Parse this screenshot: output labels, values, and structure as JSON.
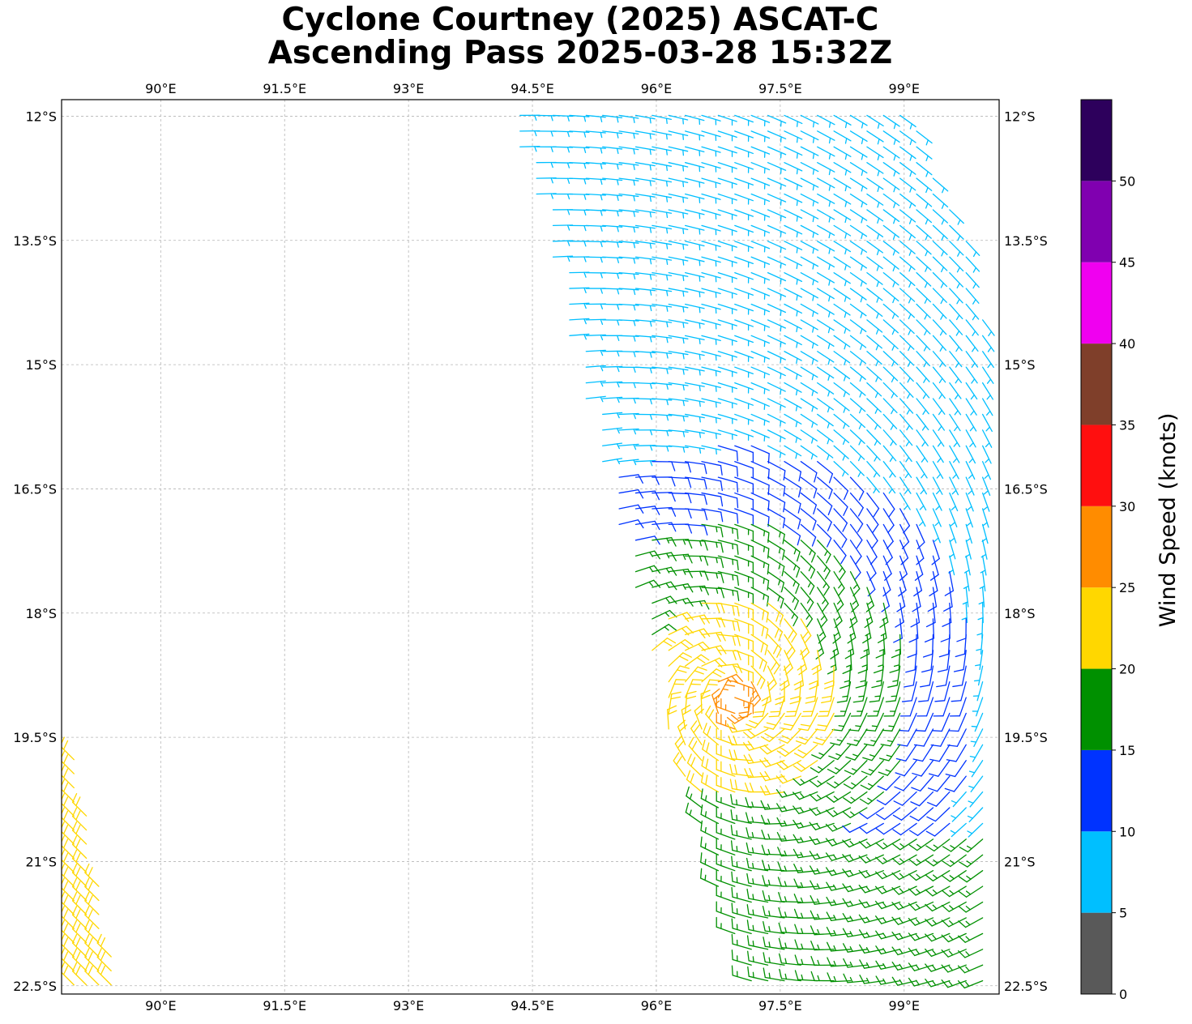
{
  "title": {
    "line1": "Cyclone Courtney (2025) ASCAT-C",
    "line2": "Ascending Pass 2025-03-28 15:32Z"
  },
  "chart_data": {
    "type": "wind_barbs",
    "lon_range": [
      88.8,
      100.15
    ],
    "lat_range": [
      -22.6,
      -11.8
    ],
    "x_ticks": [
      {
        "value": 90,
        "label": "90°E"
      },
      {
        "value": 91.5,
        "label": "91.5°E"
      },
      {
        "value": 93,
        "label": "93°E"
      },
      {
        "value": 94.5,
        "label": "94.5°E"
      },
      {
        "value": 96,
        "label": "96°E"
      },
      {
        "value": 97.5,
        "label": "97.5°E"
      },
      {
        "value": 99,
        "label": "99°E"
      }
    ],
    "y_ticks": [
      {
        "value": -12,
        "label": "12°S"
      },
      {
        "value": -13.5,
        "label": "13.5°S"
      },
      {
        "value": -15,
        "label": "15°S"
      },
      {
        "value": -16.5,
        "label": "16.5°S"
      },
      {
        "value": -18,
        "label": "18°S"
      },
      {
        "value": -19.5,
        "label": "19.5°S"
      },
      {
        "value": -21,
        "label": "21°S"
      },
      {
        "value": -22.5,
        "label": "22.5°S"
      }
    ],
    "grid": true,
    "colorbar": {
      "label": "Wind Speed (knots)",
      "range": [
        0,
        55
      ],
      "tick_values": [
        0,
        5,
        10,
        15,
        20,
        25,
        30,
        35,
        40,
        45,
        50
      ],
      "tick_labels": [
        "0",
        "5",
        "10",
        "15",
        "20",
        "25",
        "30",
        "35",
        "40",
        "45",
        "50"
      ],
      "bins": [
        {
          "min": 0,
          "max": 5,
          "color": "#595959"
        },
        {
          "min": 5,
          "max": 10,
          "color": "#00BFFF"
        },
        {
          "min": 10,
          "max": 15,
          "color": "#0033FF"
        },
        {
          "min": 15,
          "max": 20,
          "color": "#009000"
        },
        {
          "min": 20,
          "max": 25,
          "color": "#FFD700"
        },
        {
          "min": 25,
          "max": 30,
          "color": "#FF8C00"
        },
        {
          "min": 30,
          "max": 35,
          "color": "#FF0F0F"
        },
        {
          "min": 35,
          "max": 40,
          "color": "#7F3F2A"
        },
        {
          "min": 40,
          "max": 45,
          "color": "#F000F0"
        },
        {
          "min": 45,
          "max": 50,
          "color": "#8000B0"
        },
        {
          "min": 50,
          "max": 55,
          "color": "#2D005C"
        }
      ]
    },
    "circulation_center": {
      "lon": 96.95,
      "lat": -19.05
    },
    "swaths": [
      {
        "name": "main",
        "boundary": [
          [
            94.15,
            -11.8
          ],
          [
            99.0,
            -11.8
          ],
          [
            99.9,
            -13.8
          ],
          [
            100.15,
            -16.2
          ],
          [
            100.15,
            -22.6
          ],
          [
            97.2,
            -22.6
          ],
          [
            96.3,
            -20.0
          ],
          [
            95.6,
            -17.2
          ],
          [
            95.0,
            -15.0
          ],
          [
            94.6,
            -13.2
          ]
        ],
        "grid_step_lon": 0.2,
        "grid_step_lat": 0.19
      },
      {
        "name": "west",
        "boundary": [
          [
            88.8,
            -19.6
          ],
          [
            88.95,
            -19.6
          ],
          [
            89.5,
            -22.6
          ],
          [
            88.8,
            -22.6
          ]
        ],
        "grid_step_lon": 0.15,
        "grid_step_lat": 0.17
      }
    ]
  }
}
